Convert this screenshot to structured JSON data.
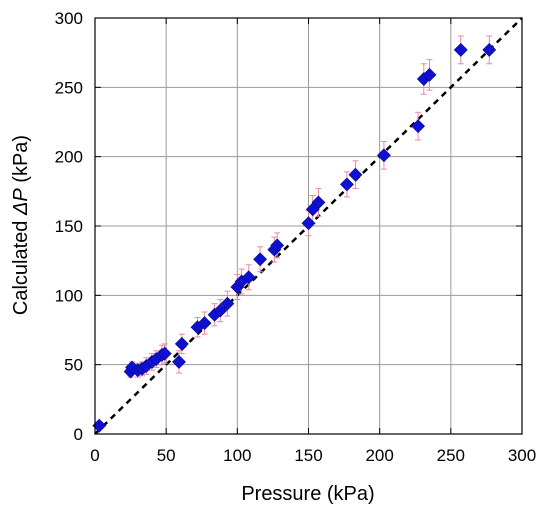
{
  "chart_data": {
    "type": "scatter",
    "title": "",
    "xlabel": "Pressure (kPa)",
    "ylabel_prefix": "Calculated ",
    "ylabel_symbol": "ΔP",
    "ylabel_suffix": " (kPa)",
    "xlim": [
      0,
      300
    ],
    "ylim": [
      0,
      300
    ],
    "xticks": [
      0,
      50,
      100,
      150,
      200,
      250,
      300
    ],
    "yticks": [
      0,
      50,
      100,
      150,
      200,
      250,
      300
    ],
    "grid": true,
    "legend": "none",
    "reference_line": {
      "style": "dashed",
      "color": "#000000",
      "from": [
        0,
        0
      ],
      "to": [
        300,
        300
      ]
    },
    "series": [
      {
        "marker": "diamond",
        "color": "#1010d0",
        "errorbar_color": "#e88aa0",
        "points": [
          {
            "x": 3,
            "y": 6,
            "err": 1
          },
          {
            "x": 25,
            "y": 45,
            "err": 4
          },
          {
            "x": 26,
            "y": 48,
            "err": 4
          },
          {
            "x": 30,
            "y": 46,
            "err": 5
          },
          {
            "x": 33,
            "y": 47,
            "err": 5
          },
          {
            "x": 36,
            "y": 49,
            "err": 6
          },
          {
            "x": 40,
            "y": 52,
            "err": 6
          },
          {
            "x": 43,
            "y": 54,
            "err": 6
          },
          {
            "x": 47,
            "y": 57,
            "err": 7
          },
          {
            "x": 49,
            "y": 58,
            "err": 7
          },
          {
            "x": 59,
            "y": 52,
            "err": 8
          },
          {
            "x": 61,
            "y": 65,
            "err": 7
          },
          {
            "x": 72,
            "y": 77,
            "err": 7
          },
          {
            "x": 77,
            "y": 80,
            "err": 8
          },
          {
            "x": 84,
            "y": 86,
            "err": 8
          },
          {
            "x": 88,
            "y": 89,
            "err": 8
          },
          {
            "x": 93,
            "y": 94,
            "err": 9
          },
          {
            "x": 100,
            "y": 106,
            "err": 9
          },
          {
            "x": 103,
            "y": 110,
            "err": 9
          },
          {
            "x": 108,
            "y": 113,
            "err": 9
          },
          {
            "x": 116,
            "y": 126,
            "err": 9
          },
          {
            "x": 126,
            "y": 133,
            "err": 9
          },
          {
            "x": 128,
            "y": 136,
            "err": 9
          },
          {
            "x": 150,
            "y": 152,
            "err": 9
          },
          {
            "x": 153,
            "y": 162,
            "err": 10
          },
          {
            "x": 157,
            "y": 167,
            "err": 10
          },
          {
            "x": 177,
            "y": 180,
            "err": 9
          },
          {
            "x": 183,
            "y": 187,
            "err": 10
          },
          {
            "x": 203,
            "y": 201,
            "err": 10
          },
          {
            "x": 227,
            "y": 222,
            "err": 10
          },
          {
            "x": 231,
            "y": 256,
            "err": 11
          },
          {
            "x": 235,
            "y": 259,
            "err": 11
          },
          {
            "x": 257,
            "y": 277,
            "err": 10
          },
          {
            "x": 277,
            "y": 277,
            "err": 10
          }
        ]
      }
    ]
  }
}
